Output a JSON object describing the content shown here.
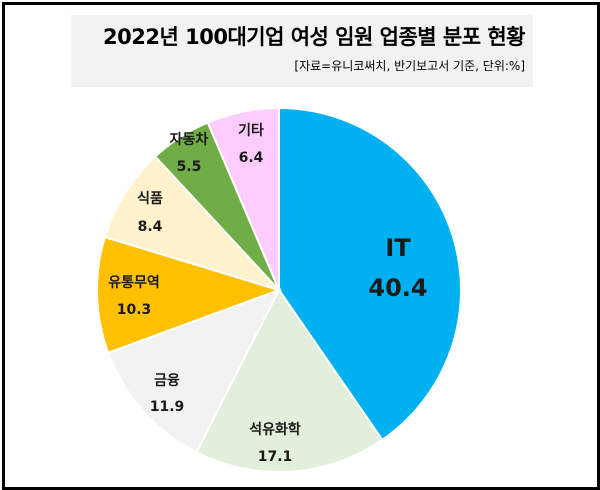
{
  "header": {
    "title": "2022년 100대기업 여성 임원 업종별 분포 현황",
    "subtitle": "[자료=유니코써치, 반기보고서 기준, 단위:%]"
  },
  "chart_data": {
    "type": "pie",
    "title": "2022년 100대기업 여성 임원 업종별 분포 현황",
    "subtitle": "[자료=유니코써치, 반기보고서 기준, 단위:%]",
    "unit": "%",
    "start_angle": "12 o'clock, clockwise",
    "categories": [
      "IT",
      "석유화학",
      "금융",
      "유통무역",
      "식품",
      "자동차",
      "기타"
    ],
    "values": [
      40.4,
      17.1,
      11.9,
      10.3,
      8.4,
      5.5,
      6.4
    ],
    "colors": [
      "#00b0f0",
      "#e2efda",
      "#f2f2f2",
      "#ffc000",
      "#fff2cc",
      "#70ad47",
      "#ffccff"
    ],
    "legend": "none (labels on slices)"
  },
  "slices": [
    {
      "label": "IT",
      "value": "40.4"
    },
    {
      "label": "석유화학",
      "value": "17.1"
    },
    {
      "label": "금융",
      "value": "11.9"
    },
    {
      "label": "유통무역",
      "value": "10.3"
    },
    {
      "label": "식품",
      "value": "8.4"
    },
    {
      "label": "자동차",
      "value": "5.5"
    },
    {
      "label": "기타",
      "value": "6.4"
    }
  ]
}
